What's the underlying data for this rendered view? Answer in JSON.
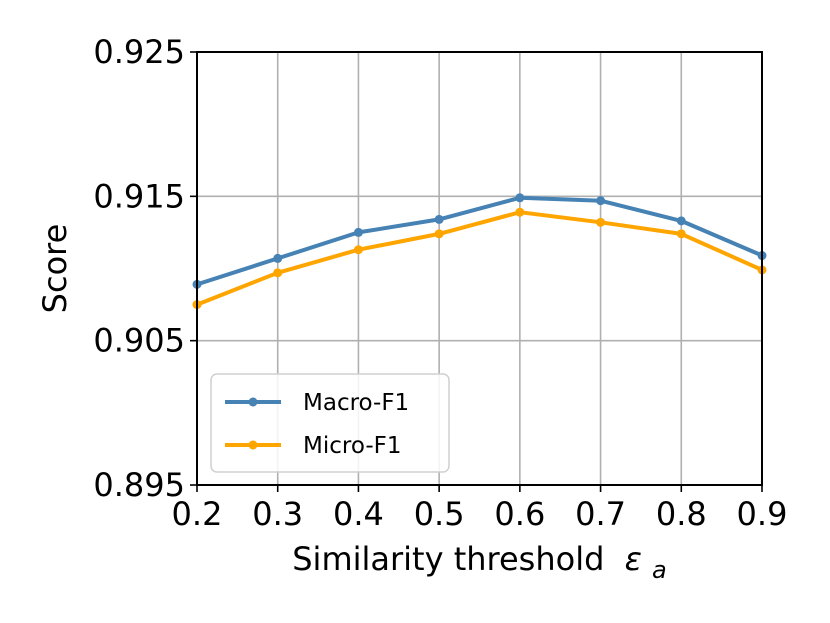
{
  "chart_data": {
    "type": "line",
    "title": "",
    "xlabel": "Similarity threshold",
    "xlabel_symbol": "ε",
    "xlabel_subscript": "a",
    "ylabel": "Score",
    "x": [
      0.2,
      0.3,
      0.4,
      0.5,
      0.6,
      0.7,
      0.8,
      0.9
    ],
    "xticks": [
      "0.2",
      "0.3",
      "0.4",
      "0.5",
      "0.6",
      "0.7",
      "0.8",
      "0.9"
    ],
    "yticks": [
      "0.895",
      "0.905",
      "0.915",
      "0.925"
    ],
    "xlim": [
      0.2,
      0.9
    ],
    "ylim": [
      0.895,
      0.925
    ],
    "grid": true,
    "legend_position": "lower-left",
    "series": [
      {
        "name": "Macro-F1",
        "color": "#4682b4",
        "values": [
          0.9089,
          0.9107,
          0.9125,
          0.9134,
          0.9149,
          0.9147,
          0.9133,
          0.9109
        ]
      },
      {
        "name": "Micro-F1",
        "color": "#ffa500",
        "values": [
          0.9075,
          0.9097,
          0.9113,
          0.9124,
          0.9139,
          0.9132,
          0.9124,
          0.9099
        ]
      }
    ]
  }
}
